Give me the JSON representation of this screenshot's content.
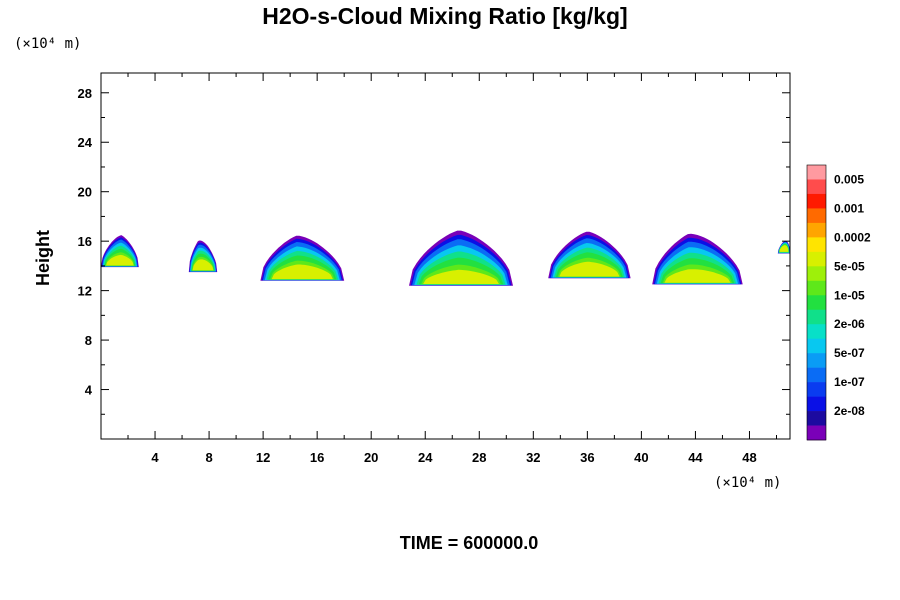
{
  "chart_data": {
    "type": "contour",
    "title": "H2O-s-Cloud Mixing Ratio [kg/kg]",
    "ylabel": "Height",
    "x_unit": "(×10⁴ m)",
    "y_unit": "(×10⁴ m)",
    "xlim": [
      0,
      51
    ],
    "ylim": [
      0,
      29.6
    ],
    "xticks": [
      4,
      8,
      12,
      16,
      20,
      24,
      28,
      32,
      36,
      40,
      44,
      48
    ],
    "yticks": [
      4,
      8,
      12,
      16,
      20,
      24,
      28
    ],
    "colorbar": {
      "labels": [
        "0.005",
        "0.001",
        "0.0002",
        "5e-05",
        "1e-05",
        "2e-06",
        "5e-07",
        "1e-07",
        "2e-08"
      ],
      "colors": [
        "#ff9aa0",
        "#ff4c4c",
        "#ff1a00",
        "#ff6a00",
        "#ffa500",
        "#ffe400",
        "#d8f000",
        "#9ef00a",
        "#5ee81a",
        "#22e040",
        "#10e08a",
        "#08e0c8",
        "#08c8f0",
        "#0a9cf5",
        "#0a6cf5",
        "#0a3cf0",
        "#0a10e6",
        "#1c0aa0",
        "#7a00b8"
      ]
    },
    "clouds": [
      {
        "x0": 0,
        "x1": 2.8,
        "base": 13.9,
        "top": 16.5,
        "core": 14.8,
        "peak": 1.5
      },
      {
        "x0": 6.5,
        "x1": 8.6,
        "base": 13.5,
        "top": 16.2,
        "core": 14.5,
        "peak": 7.2
      },
      {
        "x0": 11.8,
        "x1": 18.0,
        "base": 12.8,
        "top": 16.5,
        "core": 14.0,
        "peak": 14.5
      },
      {
        "x0": 22.8,
        "x1": 30.5,
        "base": 12.4,
        "top": 16.9,
        "core": 13.5,
        "peak": 26.5
      },
      {
        "x0": 33.1,
        "x1": 39.2,
        "base": 13.0,
        "top": 16.8,
        "core": 14.2,
        "peak": 36.0
      },
      {
        "x0": 40.8,
        "x1": 47.5,
        "base": 12.5,
        "top": 16.7,
        "core": 13.6,
        "peak": 43.5
      },
      {
        "x0": 50.1,
        "x1": 51.0,
        "base": 15.0,
        "top": 16.3,
        "core": 15.8,
        "peak": 51.0
      }
    ]
  },
  "footer": {
    "time_label": "TIME = 600000.0"
  }
}
